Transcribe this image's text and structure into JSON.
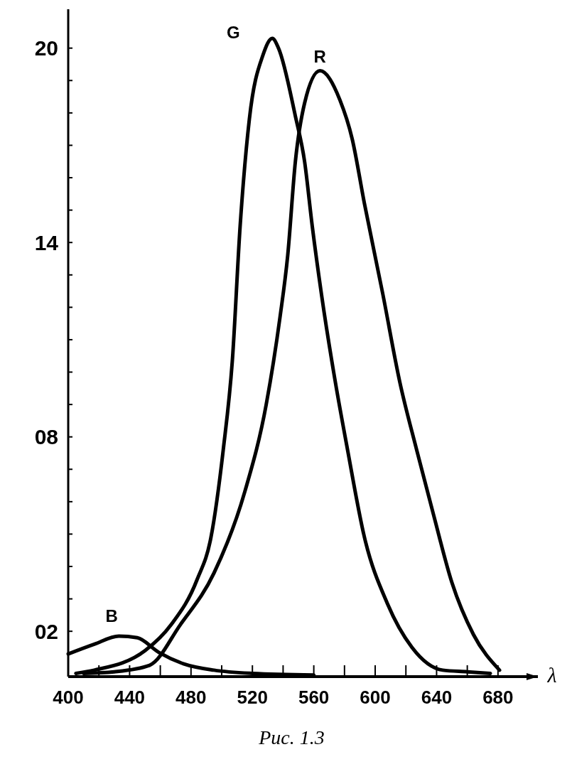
{
  "chart_data": {
    "type": "line",
    "xlabel": "λ",
    "annotations": [
      "Рис. 1.3"
    ],
    "xlim": [
      400,
      706
    ],
    "ylim": [
      0.6,
      21.2
    ],
    "xticks": [
      400,
      {
        "value": 420,
        "label": null
      },
      440,
      {
        "value": 460,
        "label": null
      },
      480,
      {
        "value": 500,
        "label": null
      },
      520,
      {
        "value": 540,
        "label": null
      },
      560,
      {
        "value": 580,
        "label": null
      },
      600,
      {
        "value": 620,
        "label": null
      },
      640,
      {
        "value": 660,
        "label": null
      },
      680
    ],
    "yticks": [
      {
        "value": 2,
        "label": "02"
      },
      {
        "value": 3,
        "label": null
      },
      {
        "value": 4,
        "label": null
      },
      {
        "value": 5,
        "label": null
      },
      {
        "value": 6,
        "label": null
      },
      {
        "value": 7,
        "label": null
      },
      {
        "value": 8,
        "label": "08"
      },
      {
        "value": 9,
        "label": null
      },
      {
        "value": 10,
        "label": null
      },
      {
        "value": 11,
        "label": null
      },
      {
        "value": 12,
        "label": null
      },
      {
        "value": 13,
        "label": null
      },
      14,
      {
        "value": 15,
        "label": null
      },
      {
        "value": 16,
        "label": null
      },
      {
        "value": 17,
        "label": null
      },
      {
        "value": 18,
        "label": null
      },
      {
        "value": 19,
        "label": null
      },
      20
    ],
    "grid": false,
    "marker": "none",
    "line_style": "solid",
    "series": [
      {
        "name": "G",
        "color": "#000000",
        "x": [
          405,
          417,
          450,
          467,
          484,
          493,
          501,
          507,
          512,
          518,
          527,
          533,
          537,
          548,
          554,
          559,
          565,
          574,
          582,
          593,
          608,
          624,
          644,
          660,
          675
        ],
        "values": [
          0.7,
          0.8,
          1.4,
          2.2,
          3.6,
          4.9,
          7.6,
          10.4,
          14.5,
          17.8,
          19.8,
          20.3,
          20.0,
          17.9,
          16.5,
          14.5,
          12.4,
          9.7,
          7.6,
          4.9,
          2.85,
          1.5,
          0.8,
          0.75,
          0.7
        ]
      },
      {
        "name": "R",
        "color": "#000000",
        "x": [
          410,
          430,
          453,
          473,
          495,
          515,
          529,
          538,
          543,
          548,
          554,
          564,
          577,
          585,
          593,
          605,
          616,
          627,
          638,
          650,
          664,
          681
        ],
        "values": [
          0.7,
          0.75,
          0.95,
          2.2,
          3.8,
          6.3,
          9.0,
          11.7,
          13.6,
          16.5,
          18.3,
          19.3,
          18.4,
          17.2,
          15.2,
          12.4,
          9.7,
          7.6,
          5.6,
          3.5,
          1.9,
          0.8
        ]
      },
      {
        "name": "B",
        "color": "#000000",
        "x": [
          400,
          417,
          433,
          445,
          459,
          475,
          495,
          520,
          560
        ],
        "values": [
          1.3,
          1.6,
          1.85,
          1.8,
          1.35,
          1.0,
          0.8,
          0.7,
          0.65
        ]
      }
    ]
  }
}
